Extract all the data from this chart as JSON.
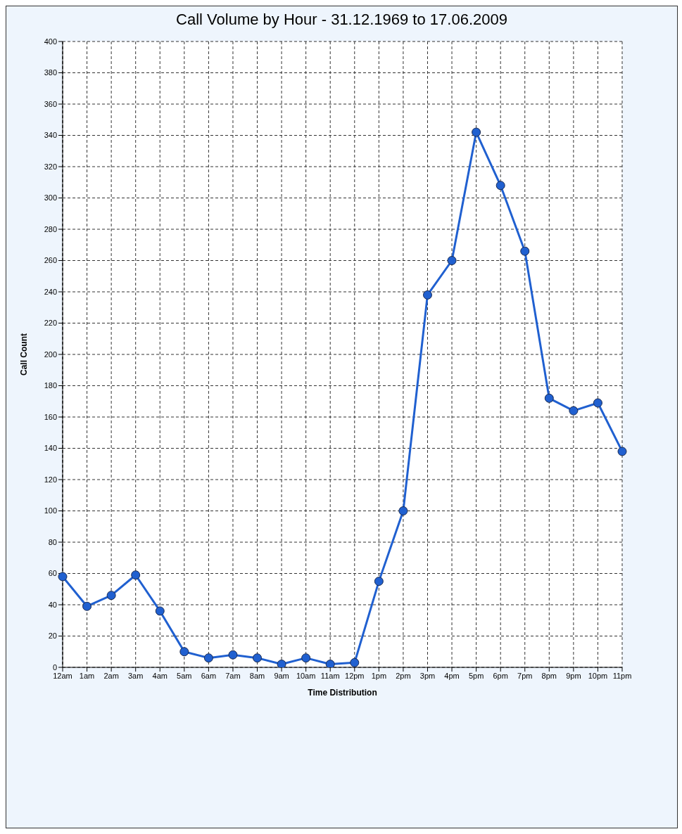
{
  "chart_data": {
    "type": "line",
    "title": "Call Volume by Hour - 31.12.1969 to 17.06.2009",
    "xlabel": "Time Distribution",
    "ylabel": "Call Count",
    "categories": [
      "12am",
      "1am",
      "2am",
      "3am",
      "4am",
      "5am",
      "6am",
      "7am",
      "8am",
      "9am",
      "10am",
      "11am",
      "12pm",
      "1pm",
      "2pm",
      "3pm",
      "4pm",
      "5pm",
      "6pm",
      "7pm",
      "8pm",
      "9pm",
      "10pm",
      "11pm"
    ],
    "series": [
      {
        "color": "#2060d0",
        "values": [
          58,
          39,
          46,
          59,
          36,
          10,
          6,
          8,
          6,
          2,
          6,
          2,
          3,
          55,
          100,
          238,
          260,
          342,
          308,
          266,
          172,
          164,
          169,
          138
        ]
      }
    ],
    "ylim": [
      0,
      400
    ],
    "yticks": [
      0,
      20,
      40,
      60,
      80,
      100,
      120,
      140,
      160,
      180,
      200,
      220,
      240,
      260,
      280,
      300,
      320,
      340,
      360,
      380,
      400
    ],
    "grid": true,
    "marker": "circle",
    "line_style": "solid"
  }
}
